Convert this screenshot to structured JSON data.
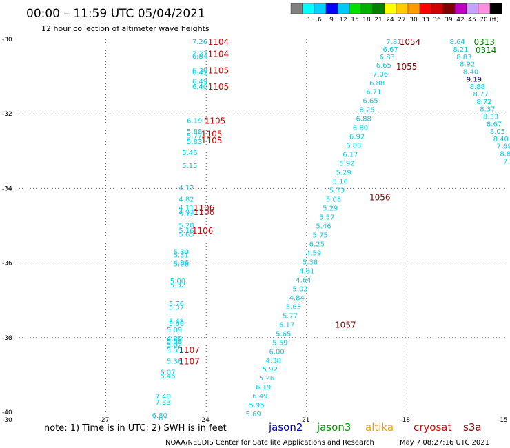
{
  "chart_data": {
    "type": "scatter",
    "title": "00:00 – 11:59 UTC 05/04/2021",
    "subtitle": "12 hour collection of altimeter wave heights",
    "xlim": [
      -30,
      -15
    ],
    "ylim": [
      -40,
      -30
    ],
    "x_ticks": [
      "-27",
      "-24",
      "-21",
      "-18",
      "-15"
    ],
    "x_tick_values": [
      -27,
      -24,
      -21,
      -18,
      -15
    ],
    "y_ticks": [
      "-30",
      "-32",
      "-34",
      "-36",
      "-38",
      "-40"
    ],
    "y_tick_values": [
      -30,
      -32,
      -34,
      -36,
      -38,
      -40
    ],
    "x_origin_label": "-30",
    "grid": "dotted",
    "legend": {
      "unit": "(ft)",
      "bins": [
        "3",
        "6",
        "9",
        "12",
        "15",
        "18",
        "21",
        "24",
        "27",
        "30",
        "33",
        "36",
        "39",
        "42",
        "45",
        "70"
      ],
      "colors": [
        "#808080",
        "#00ffff",
        "#00d0ff",
        "#0000ff",
        "#00c8ff",
        "#00e000",
        "#00b000",
        "#008000",
        "#ffff00",
        "#ffcc00",
        "#ff9900",
        "#ff0000",
        "#d00000",
        "#800000",
        "#c000c0",
        "#c8a0ff",
        "#ff90e0",
        "#000000"
      ]
    },
    "series": [
      {
        "color": "#00cfe8",
        "points": [
          {
            "x": -24.42,
            "y": -30.06,
            "label": "7.26"
          },
          {
            "x": -24.42,
            "y": -30.38,
            "label": "7.27"
          },
          {
            "x": -24.42,
            "y": -30.44,
            "label": "6.84"
          },
          {
            "x": -24.42,
            "y": -30.82,
            "label": "6.30"
          },
          {
            "x": -24.42,
            "y": -30.88,
            "label": "6.41"
          },
          {
            "x": -24.42,
            "y": -31.12,
            "label": "6.49"
          },
          {
            "x": -24.42,
            "y": -31.26,
            "label": "6.40"
          },
          {
            "x": -24.58,
            "y": -32.17,
            "label": "6.19"
          },
          {
            "x": -24.58,
            "y": -32.46,
            "label": "5.88"
          },
          {
            "x": -24.58,
            "y": -32.58,
            "label": "5.77"
          },
          {
            "x": -24.58,
            "y": -32.74,
            "label": "5.83"
          },
          {
            "x": -24.72,
            "y": -33.03,
            "label": "5.46"
          },
          {
            "x": -24.72,
            "y": -33.38,
            "label": "5.15"
          },
          {
            "x": -24.82,
            "y": -33.97,
            "label": "4.12"
          },
          {
            "x": -24.82,
            "y": -34.28,
            "label": "4.82"
          },
          {
            "x": -24.82,
            "y": -34.51,
            "label": "4.11"
          },
          {
            "x": -24.82,
            "y": -34.62,
            "label": "4.92"
          },
          {
            "x": -24.82,
            "y": -34.68,
            "label": "5.12"
          },
          {
            "x": -24.82,
            "y": -34.98,
            "label": "5.28"
          },
          {
            "x": -24.82,
            "y": -35.12,
            "label": "5.16"
          },
          {
            "x": -24.82,
            "y": -35.22,
            "label": "5.65"
          },
          {
            "x": -24.98,
            "y": -35.68,
            "label": "5.30"
          },
          {
            "x": -24.98,
            "y": -35.78,
            "label": "5.31"
          },
          {
            "x": -24.98,
            "y": -35.97,
            "label": "4.96"
          },
          {
            "x": -24.98,
            "y": -36.02,
            "label": "5.06"
          },
          {
            "x": -25.08,
            "y": -36.47,
            "label": "5.00"
          },
          {
            "x": -25.08,
            "y": -36.58,
            "label": "5.32"
          },
          {
            "x": -25.12,
            "y": -37.08,
            "label": "5.76"
          },
          {
            "x": -25.12,
            "y": -37.18,
            "label": "5.37"
          },
          {
            "x": -25.12,
            "y": -37.55,
            "label": "5.48"
          },
          {
            "x": -25.12,
            "y": -37.62,
            "label": "5.66"
          },
          {
            "x": -25.18,
            "y": -37.78,
            "label": "5.09"
          },
          {
            "x": -25.18,
            "y": -38.02,
            "label": "4.89"
          },
          {
            "x": -25.18,
            "y": -38.1,
            "label": "5.08"
          },
          {
            "x": -25.18,
            "y": -38.18,
            "label": "5.02"
          },
          {
            "x": -25.18,
            "y": -38.32,
            "label": "5.55"
          },
          {
            "x": -25.18,
            "y": -38.62,
            "label": "5.38"
          },
          {
            "x": -25.38,
            "y": -38.92,
            "label": "6.07"
          },
          {
            "x": -25.38,
            "y": -39.02,
            "label": "6.46"
          },
          {
            "x": -25.52,
            "y": -39.57,
            "label": "7.40"
          },
          {
            "x": -25.52,
            "y": -39.72,
            "label": "7.33"
          },
          {
            "x": -25.62,
            "y": -40.07,
            "label": "6.80"
          },
          {
            "x": -25.62,
            "y": -40.15,
            "label": "7.87"
          },
          {
            "x": -18.62,
            "y": -30.06,
            "label": "7.81"
          },
          {
            "x": -18.72,
            "y": -30.26,
            "label": "6.67"
          },
          {
            "x": -18.82,
            "y": -30.46,
            "label": "6.83"
          },
          {
            "x": -18.92,
            "y": -30.68,
            "label": "6.65"
          },
          {
            "x": -19.02,
            "y": -30.92,
            "label": "7.06"
          },
          {
            "x": -19.12,
            "y": -31.16,
            "label": "6.88"
          },
          {
            "x": -19.22,
            "y": -31.4,
            "label": "6.71"
          },
          {
            "x": -19.32,
            "y": -31.64,
            "label": "6.65"
          },
          {
            "x": -19.42,
            "y": -31.88,
            "label": "8.25"
          },
          {
            "x": -19.52,
            "y": -32.12,
            "label": "6.88"
          },
          {
            "x": -19.62,
            "y": -32.36,
            "label": "6.80"
          },
          {
            "x": -19.72,
            "y": -32.6,
            "label": "6.92"
          },
          {
            "x": -19.82,
            "y": -32.84,
            "label": "6.88"
          },
          {
            "x": -19.92,
            "y": -33.08,
            "label": "6.17"
          },
          {
            "x": -20.02,
            "y": -33.32,
            "label": "5.92"
          },
          {
            "x": -20.12,
            "y": -33.56,
            "label": "5.29"
          },
          {
            "x": -20.22,
            "y": -33.8,
            "label": "5.16"
          },
          {
            "x": -20.32,
            "y": -34.04,
            "label": "5.73"
          },
          {
            "x": -20.42,
            "y": -34.28,
            "label": "5.08"
          },
          {
            "x": -20.52,
            "y": -34.52,
            "label": "5.29"
          },
          {
            "x": -20.62,
            "y": -34.76,
            "label": "5.57"
          },
          {
            "x": -20.72,
            "y": -35.0,
            "label": "5.46"
          },
          {
            "x": -20.82,
            "y": -35.24,
            "label": "5.75"
          },
          {
            "x": -20.92,
            "y": -35.48,
            "label": "6.25"
          },
          {
            "x": -21.02,
            "y": -35.72,
            "label": "4.59"
          },
          {
            "x": -21.12,
            "y": -35.96,
            "label": "5.38"
          },
          {
            "x": -21.22,
            "y": -36.2,
            "label": "4.61"
          },
          {
            "x": -21.32,
            "y": -36.44,
            "label": "4.64"
          },
          {
            "x": -21.42,
            "y": -36.68,
            "label": "5.02"
          },
          {
            "x": -21.52,
            "y": -36.92,
            "label": "4.84"
          },
          {
            "x": -21.62,
            "y": -37.16,
            "label": "5.63"
          },
          {
            "x": -21.72,
            "y": -37.4,
            "label": "5.77"
          },
          {
            "x": -21.82,
            "y": -37.64,
            "label": "6.17"
          },
          {
            "x": -21.92,
            "y": -37.88,
            "label": "5.65"
          },
          {
            "x": -22.02,
            "y": -38.12,
            "label": "5.59"
          },
          {
            "x": -22.12,
            "y": -38.36,
            "label": "6.00"
          },
          {
            "x": -22.22,
            "y": -38.6,
            "label": "4.38"
          },
          {
            "x": -22.32,
            "y": -38.84,
            "label": "5.92"
          },
          {
            "x": -22.42,
            "y": -39.08,
            "label": "5.26"
          },
          {
            "x": -22.52,
            "y": -39.32,
            "label": "6.19"
          },
          {
            "x": -22.62,
            "y": -39.56,
            "label": "6.49"
          },
          {
            "x": -22.72,
            "y": -39.8,
            "label": "5.95"
          },
          {
            "x": -22.82,
            "y": -40.04,
            "label": "5.69"
          },
          {
            "x": -16.72,
            "y": -30.06,
            "label": "8.64"
          },
          {
            "x": -16.62,
            "y": -30.26,
            "label": "8.21"
          },
          {
            "x": -16.52,
            "y": -30.46,
            "label": "8.83"
          },
          {
            "x": -16.42,
            "y": -30.66,
            "label": "8.92"
          },
          {
            "x": -16.32,
            "y": -30.86,
            "label": "8.40"
          },
          {
            "x": -16.12,
            "y": -31.26,
            "label": "8.88"
          },
          {
            "x": -16.02,
            "y": -31.46,
            "label": "8.77"
          },
          {
            "x": -15.92,
            "y": -31.66,
            "label": "8.72"
          },
          {
            "x": -15.82,
            "y": -31.86,
            "label": "8.37"
          },
          {
            "x": -15.72,
            "y": -32.06,
            "label": "8.33"
          },
          {
            "x": -15.62,
            "y": -32.26,
            "label": "8.67"
          },
          {
            "x": -15.52,
            "y": -32.46,
            "label": "8.05"
          },
          {
            "x": -15.42,
            "y": -32.66,
            "label": "8.40"
          },
          {
            "x": -15.32,
            "y": -32.86,
            "label": "7.69"
          },
          {
            "x": -15.22,
            "y": -33.06,
            "label": "8.8"
          },
          {
            "x": -15.12,
            "y": -33.26,
            "label": "7."
          }
        ]
      },
      {
        "color": "#0000cc",
        "points": [
          {
            "x": -16.22,
            "y": -31.06,
            "label": "9.19"
          }
        ]
      }
    ],
    "annotations": [
      {
        "x": -23.95,
        "y": -30.06,
        "label": "1104",
        "color": "#e00000"
      },
      {
        "x": -23.95,
        "y": -30.38,
        "label": "1104",
        "color": "#e00000"
      },
      {
        "x": -23.95,
        "y": -30.82,
        "label": "1105",
        "color": "#e00000"
      },
      {
        "x": -23.95,
        "y": -31.26,
        "label": "1105",
        "color": "#e00000"
      },
      {
        "x": -24.05,
        "y": -32.17,
        "label": "1105",
        "color": "#e00000"
      },
      {
        "x": -24.15,
        "y": -32.52,
        "label": "1105",
        "color": "#e00000"
      },
      {
        "x": -24.15,
        "y": -32.7,
        "label": "1105",
        "color": "#e00000"
      },
      {
        "x": -24.38,
        "y": -34.51,
        "label": "1106",
        "color": "#e00000"
      },
      {
        "x": -24.38,
        "y": -34.62,
        "label": "1106",
        "color": "#e00000"
      },
      {
        "x": -24.42,
        "y": -35.12,
        "label": "1106",
        "color": "#e00000"
      },
      {
        "x": -24.82,
        "y": -38.32,
        "label": "1107",
        "color": "#e00000"
      },
      {
        "x": -24.82,
        "y": -38.62,
        "label": "1107",
        "color": "#e00000"
      },
      {
        "x": -18.22,
        "y": -30.06,
        "label": "1054",
        "color": "#800000"
      },
      {
        "x": -18.32,
        "y": -30.72,
        "label": "1055",
        "color": "#800000"
      },
      {
        "x": -19.12,
        "y": -34.22,
        "label": "1056",
        "color": "#800000"
      },
      {
        "x": -20.15,
        "y": -37.64,
        "label": "1057",
        "color": "#800000"
      },
      {
        "x": -16.0,
        "y": -30.06,
        "label": "0313",
        "color": "#008000"
      },
      {
        "x": -15.95,
        "y": -30.28,
        "label": "0314",
        "color": "#008000"
      }
    ]
  },
  "footer": {
    "note": "note: 1) Time is in UTC; 2) SWH is in feet",
    "satellites": [
      {
        "name": "jason2",
        "color": "#0000cc"
      },
      {
        "name": "jason3",
        "color": "#00a000"
      },
      {
        "name": "altika",
        "color": "#ff9900"
      },
      {
        "name": "cryosat",
        "color": "#e00000"
      },
      {
        "name": "s3a",
        "color": "#800000"
      }
    ],
    "credit": "NOAA/NESDIS Center for Satellite Applications and Research",
    "timestamp": "May  7 08:27:16 UTC 2021"
  }
}
